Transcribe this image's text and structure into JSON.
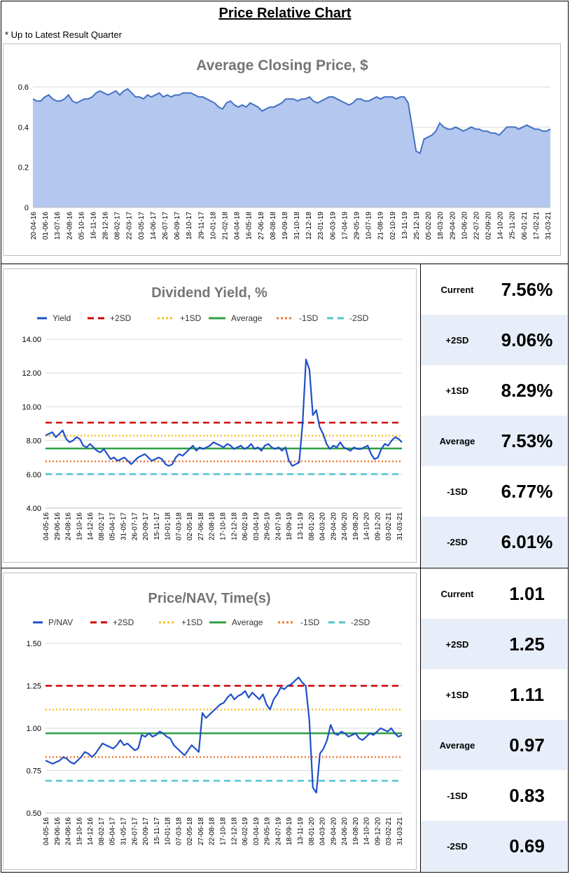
{
  "page": {
    "title": "Price Relative Chart",
    "subtitle": "* Up to Latest Result Quarter"
  },
  "colors": {
    "area_fill": "#b4c7ee",
    "area_line": "#4472c4",
    "series_line": "#1f4fc8",
    "plus2sd": "#d00000",
    "plus1sd": "#f5c02a",
    "average": "#2ea043",
    "minus1sd": "#f07a30",
    "minus2sd": "#4fc4cf",
    "grid": "#d9d9d9",
    "title_grey": "#757575",
    "stat_shade": "#e8eef9"
  },
  "chart_data": [
    {
      "id": "price",
      "type": "area",
      "title": "Average Closing Price, $",
      "ylim": [
        0,
        0.6
      ],
      "yticks": [
        "0",
        "0.2",
        "0.4",
        "0.6"
      ],
      "ytick_values": [
        0,
        0.2,
        0.4,
        0.6
      ],
      "xtick_labels": [
        "20-04-16",
        "01-06-16",
        "13-07-16",
        "24-08-16",
        "05-10-16",
        "16-11-16",
        "28-12-16",
        "08-02-17",
        "22-03-17",
        "03-05-17",
        "14-06-17",
        "26-07-17",
        "06-09-17",
        "18-10-17",
        "29-11-17",
        "10-01-18",
        "21-02-18",
        "04-04-18",
        "16-05-18",
        "27-06-18",
        "08-08-18",
        "19-09-18",
        "31-10-18",
        "12-12-18",
        "23-01-19",
        "06-03-19",
        "17-04-19",
        "29-05-19",
        "10-07-19",
        "21-08-19",
        "02-10-19",
        "13-11-19",
        "25-12-19",
        "05-02-20",
        "18-03-20",
        "29-04-20",
        "10-06-20",
        "22-07-20",
        "02-09-20",
        "14-10-20",
        "25-11-20",
        "06-01-21",
        "17-02-21",
        "31-03-21"
      ],
      "values": [
        0.54,
        0.53,
        0.53,
        0.55,
        0.56,
        0.54,
        0.53,
        0.53,
        0.54,
        0.56,
        0.53,
        0.52,
        0.53,
        0.54,
        0.54,
        0.55,
        0.57,
        0.58,
        0.57,
        0.56,
        0.57,
        0.58,
        0.56,
        0.58,
        0.59,
        0.57,
        0.55,
        0.55,
        0.54,
        0.56,
        0.55,
        0.56,
        0.57,
        0.55,
        0.56,
        0.55,
        0.56,
        0.56,
        0.57,
        0.57,
        0.57,
        0.56,
        0.55,
        0.55,
        0.54,
        0.53,
        0.52,
        0.5,
        0.49,
        0.52,
        0.53,
        0.51,
        0.5,
        0.51,
        0.5,
        0.52,
        0.51,
        0.5,
        0.48,
        0.49,
        0.5,
        0.5,
        0.51,
        0.52,
        0.54,
        0.54,
        0.54,
        0.53,
        0.54,
        0.54,
        0.55,
        0.53,
        0.52,
        0.53,
        0.54,
        0.55,
        0.55,
        0.54,
        0.53,
        0.52,
        0.51,
        0.52,
        0.54,
        0.54,
        0.53,
        0.53,
        0.54,
        0.55,
        0.54,
        0.55,
        0.55,
        0.55,
        0.54,
        0.55,
        0.55,
        0.52,
        0.4,
        0.28,
        0.27,
        0.34,
        0.35,
        0.36,
        0.38,
        0.42,
        0.4,
        0.39,
        0.39,
        0.4,
        0.39,
        0.38,
        0.39,
        0.4,
        0.39,
        0.39,
        0.38,
        0.38,
        0.37,
        0.37,
        0.36,
        0.38,
        0.4,
        0.4,
        0.4,
        0.39,
        0.4,
        0.41,
        0.4,
        0.39,
        0.39,
        0.38,
        0.38,
        0.39
      ]
    },
    {
      "id": "yield",
      "type": "line",
      "title": "Dividend Yield, %",
      "series_name": "Yield",
      "legend": [
        "Yield",
        "+2SD",
        "+1SD",
        "Average",
        "-1SD",
        "-2SD"
      ],
      "ylim": [
        4,
        14
      ],
      "yticks": [
        "4.00",
        "6.00",
        "8.00",
        "10.00",
        "12.00",
        "14.00"
      ],
      "ytick_values": [
        4,
        6,
        8,
        10,
        12,
        14
      ],
      "xtick_labels": [
        "04-05-16",
        "29-06-16",
        "24-08-16",
        "19-10-16",
        "14-12-16",
        "08-02-17",
        "05-04-17",
        "31-05-17",
        "26-07-17",
        "20-09-17",
        "15-11-17",
        "10-01-18",
        "07-03-18",
        "02-05-18",
        "27-06-18",
        "22-08-18",
        "17-10-18",
        "12-12-18",
        "06-02-19",
        "03-04-19",
        "29-05-19",
        "24-07-19",
        "18-09-19",
        "13-11-19",
        "08-01-20",
        "04-03-20",
        "29-04-20",
        "24-06-20",
        "19-08-20",
        "14-10-20",
        "09-12-20",
        "03-02-21",
        "31-03-21"
      ],
      "values": [
        8.3,
        8.4,
        8.5,
        8.2,
        8.4,
        8.6,
        8.1,
        7.9,
        8.0,
        8.2,
        8.1,
        7.7,
        7.6,
        7.8,
        7.6,
        7.4,
        7.3,
        7.5,
        7.2,
        6.9,
        7.0,
        6.8,
        6.9,
        7.0,
        6.8,
        6.6,
        6.8,
        7.0,
        7.1,
        7.2,
        7.0,
        6.8,
        6.9,
        7.0,
        6.9,
        6.6,
        6.5,
        6.6,
        7.0,
        7.2,
        7.1,
        7.3,
        7.5,
        7.7,
        7.4,
        7.6,
        7.5,
        7.6,
        7.7,
        7.9,
        7.8,
        7.7,
        7.6,
        7.8,
        7.7,
        7.5,
        7.6,
        7.7,
        7.5,
        7.6,
        7.8,
        7.5,
        7.6,
        7.4,
        7.7,
        7.8,
        7.6,
        7.5,
        7.6,
        7.4,
        7.6,
        6.8,
        6.5,
        6.6,
        6.7,
        9.0,
        12.8,
        12.2,
        9.5,
        9.8,
        8.8,
        8.4,
        7.8,
        7.5,
        7.7,
        7.6,
        7.9,
        7.6,
        7.5,
        7.4,
        7.6,
        7.5,
        7.5,
        7.6,
        7.7,
        7.2,
        6.9,
        7.0,
        7.5,
        7.8,
        7.7,
        8.0,
        8.2,
        8.1,
        7.9
      ],
      "lines": {
        "plus2sd": 9.06,
        "plus1sd": 8.29,
        "average": 7.53,
        "minus1sd": 6.77,
        "minus2sd": 6.01
      }
    },
    {
      "id": "pnav",
      "type": "line",
      "title": "Price/NAV, Time(s)",
      "series_name": "P/NAV",
      "legend": [
        "P/NAV",
        "+2SD",
        "+1SD",
        "Average",
        "-1SD",
        "-2SD"
      ],
      "ylim": [
        0.5,
        1.5
      ],
      "yticks": [
        "0.50",
        "0.75",
        "1.00",
        "1.25",
        "1.50"
      ],
      "ytick_values": [
        0.5,
        0.75,
        1.0,
        1.25,
        1.5
      ],
      "xtick_labels": [
        "04-05-16",
        "29-06-16",
        "24-08-16",
        "19-10-16",
        "14-12-16",
        "08-02-17",
        "05-04-17",
        "31-05-17",
        "26-07-17",
        "20-09-17",
        "15-11-17",
        "10-01-18",
        "07-03-18",
        "02-05-18",
        "27-06-18",
        "22-08-18",
        "17-10-18",
        "12-12-18",
        "06-02-19",
        "03-04-19",
        "29-05-19",
        "24-07-19",
        "18-09-19",
        "13-11-19",
        "08-01-20",
        "04-03-20",
        "29-04-20",
        "24-06-20",
        "19-08-20",
        "14-10-20",
        "09-12-20",
        "03-02-21",
        "31-03-21"
      ],
      "values": [
        0.81,
        0.8,
        0.79,
        0.8,
        0.81,
        0.83,
        0.82,
        0.8,
        0.79,
        0.81,
        0.83,
        0.86,
        0.85,
        0.83,
        0.85,
        0.88,
        0.91,
        0.9,
        0.89,
        0.88,
        0.9,
        0.93,
        0.9,
        0.91,
        0.89,
        0.87,
        0.88,
        0.96,
        0.95,
        0.97,
        0.95,
        0.96,
        0.98,
        0.97,
        0.95,
        0.94,
        0.9,
        0.88,
        0.86,
        0.84,
        0.87,
        0.9,
        0.88,
        0.86,
        1.09,
        1.06,
        1.08,
        1.1,
        1.12,
        1.14,
        1.15,
        1.18,
        1.2,
        1.17,
        1.19,
        1.2,
        1.22,
        1.18,
        1.21,
        1.19,
        1.17,
        1.2,
        1.14,
        1.11,
        1.17,
        1.2,
        1.24,
        1.23,
        1.25,
        1.26,
        1.28,
        1.3,
        1.27,
        1.25,
        1.05,
        0.65,
        0.62,
        0.85,
        0.88,
        0.93,
        1.02,
        0.97,
        0.96,
        0.98,
        0.97,
        0.95,
        0.96,
        0.97,
        0.94,
        0.93,
        0.95,
        0.97,
        0.96,
        0.98,
        1.0,
        0.99,
        0.98,
        1.0,
        0.97,
        0.95,
        0.96
      ],
      "lines": {
        "plus2sd": 1.25,
        "plus1sd": 1.11,
        "average": 0.97,
        "minus1sd": 0.83,
        "minus2sd": 0.69
      }
    }
  ],
  "stats": {
    "yield": [
      {
        "label": "Current",
        "value": "7.56%"
      },
      {
        "label": "+2SD",
        "value": "9.06%"
      },
      {
        "label": "+1SD",
        "value": "8.29%"
      },
      {
        "label": "Average",
        "value": "7.53%"
      },
      {
        "label": "-1SD",
        "value": "6.77%"
      },
      {
        "label": "-2SD",
        "value": "6.01%"
      }
    ],
    "pnav": [
      {
        "label": "Current",
        "value": "1.01"
      },
      {
        "label": "+2SD",
        "value": "1.25"
      },
      {
        "label": "+1SD",
        "value": "1.11"
      },
      {
        "label": "Average",
        "value": "0.97"
      },
      {
        "label": "-1SD",
        "value": "0.83"
      },
      {
        "label": "-2SD",
        "value": "0.69"
      }
    ]
  }
}
